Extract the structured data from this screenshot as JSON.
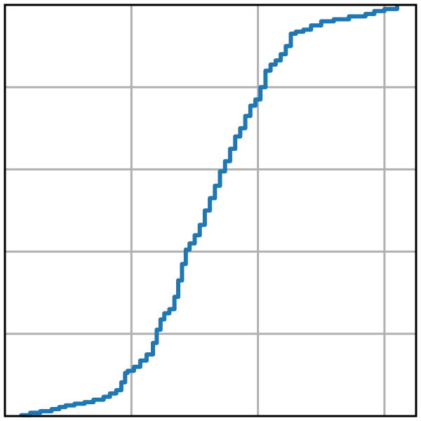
{
  "chart_data": {
    "type": "line",
    "title": "",
    "xlabel": "",
    "ylabel": "",
    "xlim": [
      0,
      3.25
    ],
    "ylim": [
      0,
      1.0
    ],
    "x_gridlines": [
      1,
      2,
      3
    ],
    "y_gridlines": [
      0.2,
      0.4,
      0.6,
      0.8
    ],
    "grid": true,
    "legend": "none",
    "colors": {
      "series": "#1f77b4",
      "grid": "#b0b0b0",
      "frame": "#000000"
    },
    "series": [
      {
        "step": true,
        "x": [
          0.13,
          0.2,
          0.28,
          0.37,
          0.43,
          0.48,
          0.55,
          0.63,
          0.7,
          0.78,
          0.83,
          0.88,
          0.92,
          0.95,
          0.97,
          1.02,
          1.07,
          1.12,
          1.17,
          1.2,
          1.23,
          1.26,
          1.3,
          1.34,
          1.37,
          1.4,
          1.43,
          1.46,
          1.5,
          1.54,
          1.58,
          1.62,
          1.66,
          1.7,
          1.74,
          1.78,
          1.82,
          1.86,
          1.9,
          1.94,
          1.98,
          2.02,
          2.06,
          2.1,
          2.14,
          2.18,
          2.22,
          2.26,
          2.3,
          2.36,
          2.42,
          2.5,
          2.6,
          2.72,
          2.85,
          2.92,
          3.0,
          3.1
        ],
        "y": [
          0.002,
          0.008,
          0.012,
          0.017,
          0.022,
          0.026,
          0.03,
          0.034,
          0.04,
          0.047,
          0.055,
          0.063,
          0.082,
          0.105,
          0.11,
          0.12,
          0.135,
          0.15,
          0.178,
          0.21,
          0.235,
          0.25,
          0.26,
          0.29,
          0.33,
          0.37,
          0.405,
          0.42,
          0.44,
          0.465,
          0.5,
          0.53,
          0.56,
          0.595,
          0.62,
          0.65,
          0.68,
          0.7,
          0.73,
          0.755,
          0.77,
          0.8,
          0.84,
          0.855,
          0.865,
          0.88,
          0.9,
          0.93,
          0.935,
          0.94,
          0.95,
          0.96,
          0.965,
          0.972,
          0.978,
          0.985,
          0.99,
          0.995
        ]
      }
    ]
  }
}
